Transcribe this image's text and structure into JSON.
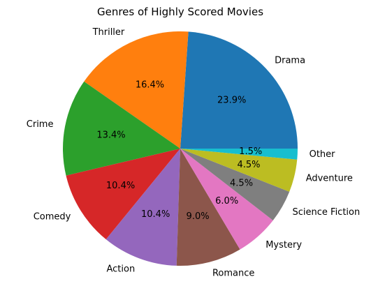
{
  "chart_data": {
    "type": "pie",
    "title": "Genres of Highly Scored Movies",
    "categories": [
      "Drama",
      "Thriller",
      "Crime",
      "Comedy",
      "Action",
      "Romance",
      "Mystery",
      "Science Fiction",
      "Adventure",
      "Other"
    ],
    "values": [
      23.9,
      16.4,
      13.4,
      10.4,
      10.4,
      9.0,
      6.0,
      4.5,
      4.5,
      1.5
    ],
    "value_labels": [
      "23.9%",
      "16.4%",
      "13.4%",
      "10.4%",
      "10.4%",
      "9.0%",
      "6.0%",
      "4.5%",
      "4.5%",
      "1.5%"
    ],
    "colors": [
      "#1f77b4",
      "#ff7f0e",
      "#2ca02c",
      "#d62728",
      "#9467bd",
      "#8c564b",
      "#e377c2",
      "#7f7f7f",
      "#bcbd22",
      "#17becf"
    ],
    "start_angle_deg": 0,
    "direction": "counterclockwise",
    "legend": "none"
  }
}
